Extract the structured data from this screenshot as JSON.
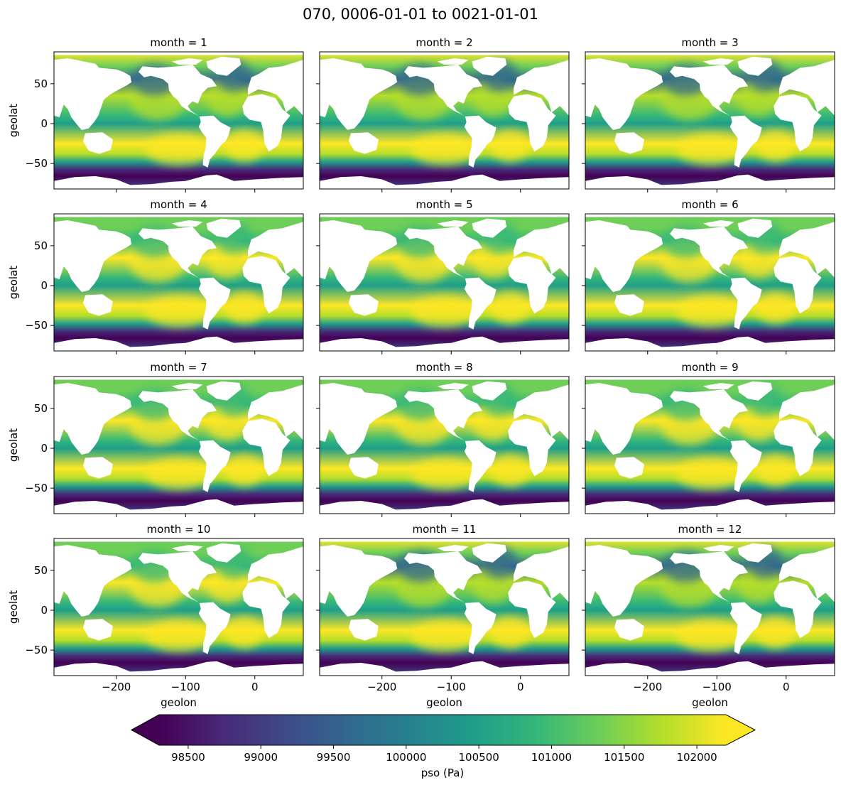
{
  "chart_data": {
    "type": "heatmap",
    "title": "070, 0006-01-01 to 0021-01-01",
    "panels": [
      {
        "title": "month = 1",
        "month": 1
      },
      {
        "title": "month = 2",
        "month": 2
      },
      {
        "title": "month = 3",
        "month": 3
      },
      {
        "title": "month = 4",
        "month": 4
      },
      {
        "title": "month = 5",
        "month": 5
      },
      {
        "title": "month = 6",
        "month": 6
      },
      {
        "title": "month = 7",
        "month": 7
      },
      {
        "title": "month = 8",
        "month": 8
      },
      {
        "title": "month = 9",
        "month": 9
      },
      {
        "title": "month = 10",
        "month": 10
      },
      {
        "title": "month = 11",
        "month": 11
      },
      {
        "title": "month = 12",
        "month": 12
      }
    ],
    "xlabel": "geolon",
    "ylabel": "geolat",
    "xlim": [
      -290,
      70
    ],
    "ylim": [
      -82,
      90
    ],
    "xticks": [
      {
        "value": -200,
        "label": "−200"
      },
      {
        "value": -100,
        "label": "−100"
      },
      {
        "value": 0,
        "label": "0"
      }
    ],
    "yticks": [
      {
        "value": 50,
        "label": "50"
      },
      {
        "value": 0,
        "label": "0"
      },
      {
        "value": -50,
        "label": "−50"
      }
    ],
    "colorbar": {
      "label": "pso (Pa)",
      "vmin": 98300,
      "vmax": 102200,
      "extend": "both",
      "colormap": "viridis",
      "ticks": [
        98500,
        99000,
        99500,
        100000,
        100500,
        101000,
        101500,
        102000
      ],
      "tick_labels": [
        "98500",
        "99000",
        "99500",
        "100000",
        "100500",
        "101000",
        "101500",
        "102000"
      ]
    },
    "land_color": "#ffffff",
    "colors": {
      "viridis": [
        "#440154",
        "#482878",
        "#3e4a89",
        "#31688e",
        "#26828e",
        "#1f9e89",
        "#35b779",
        "#6ece58",
        "#b5de2b",
        "#fde725"
      ]
    }
  }
}
